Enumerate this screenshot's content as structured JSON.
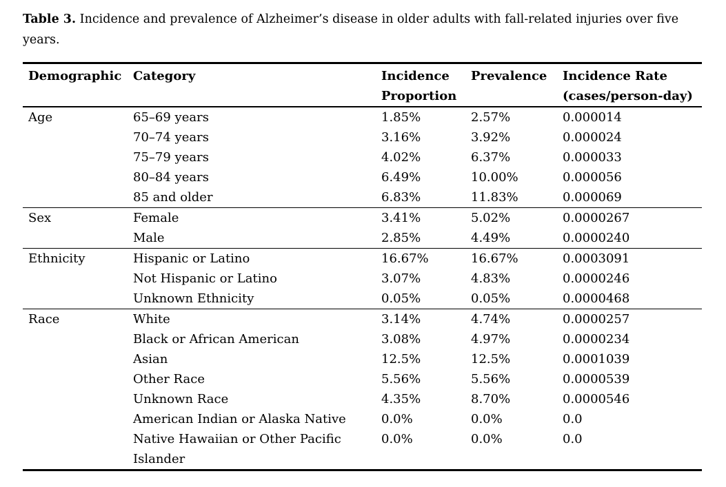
{
  "title": {
    "label": "Table 3.",
    "text": "Incidence and prevalence of Alzheimer’s disease in older adults with fall-related injuries over five\nyears."
  },
  "table": {
    "headers": [
      {
        "line1": "Demographic",
        "line2": ""
      },
      {
        "line1": "Category",
        "line2": ""
      },
      {
        "line1": "Incidence",
        "line2": "Proportion"
      },
      {
        "line1": "Prevalence",
        "line2": ""
      },
      {
        "line1": "Incidence Rate",
        "line2": "(cases/person-day)"
      }
    ],
    "sections": [
      {
        "demographic": "Age",
        "rows": [
          {
            "category": "65–69 years",
            "incidence_proportion": "1.85%",
            "prevalence": "2.57%",
            "incidence_rate": "0.000014"
          },
          {
            "category": "70–74 years",
            "incidence_proportion": "3.16%",
            "prevalence": "3.92%",
            "incidence_rate": "0.000024"
          },
          {
            "category": "75–79 years",
            "incidence_proportion": "4.02%",
            "prevalence": "6.37%",
            "incidence_rate": "0.000033"
          },
          {
            "category": "80–84 years",
            "incidence_proportion": "6.49%",
            "prevalence": "10.00%",
            "incidence_rate": "0.000056"
          },
          {
            "category": "85 and older",
            "incidence_proportion": "6.83%",
            "prevalence": "11.83%",
            "incidence_rate": "0.000069"
          }
        ]
      },
      {
        "demographic": "Sex",
        "rows": [
          {
            "category": "Female",
            "incidence_proportion": "3.41%",
            "prevalence": "5.02%",
            "incidence_rate": "0.0000267"
          },
          {
            "category": "Male",
            "incidence_proportion": "2.85%",
            "prevalence": "4.49%",
            "incidence_rate": "0.0000240"
          }
        ]
      },
      {
        "demographic": "Ethnicity",
        "rows": [
          {
            "category": "Hispanic or Latino",
            "incidence_proportion": "16.67%",
            "prevalence": "16.67%",
            "incidence_rate": "0.0003091"
          },
          {
            "category": "Not Hispanic or Latino",
            "incidence_proportion": "3.07%",
            "prevalence": "4.83%",
            "incidence_rate": "0.0000246"
          },
          {
            "category": "Unknown Ethnicity",
            "incidence_proportion": "0.05%",
            "prevalence": "0.05%",
            "incidence_rate": "0.0000468"
          }
        ]
      },
      {
        "demographic": "Race",
        "rows": [
          {
            "category": "White",
            "incidence_proportion": "3.14%",
            "prevalence": "4.74%",
            "incidence_rate": "0.0000257"
          },
          {
            "category": "Black or African American",
            "incidence_proportion": "3.08%",
            "prevalence": "4.97%",
            "incidence_rate": "0.0000234"
          },
          {
            "category": "Asian",
            "incidence_proportion": "12.5%",
            "prevalence": "12.5%",
            "incidence_rate": "0.0001039"
          },
          {
            "category": "Other Race",
            "incidence_proportion": "5.56%",
            "prevalence": "5.56%",
            "incidence_rate": "0.0000539"
          },
          {
            "category": "Unknown Race",
            "incidence_proportion": "4.35%",
            "prevalence": "8.70%",
            "incidence_rate": "0.0000546"
          },
          {
            "category": "American Indian or Alaska Native",
            "incidence_proportion": "0.0%",
            "prevalence": "0.0%",
            "incidence_rate": "0.0"
          },
          {
            "category": "Native Hawaiian or Other Pacific\nIslander",
            "incidence_proportion": "0.0%",
            "prevalence": "0.0%",
            "incidence_rate": "0.0"
          }
        ]
      }
    ]
  }
}
